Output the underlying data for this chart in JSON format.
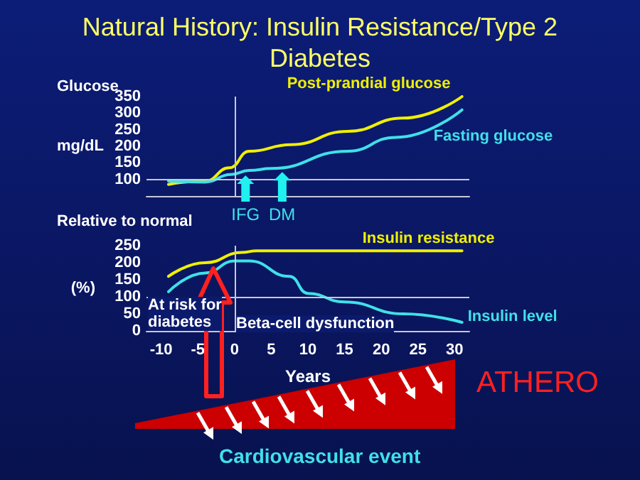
{
  "chart_data": [
    {
      "type": "line",
      "title": "Natural History: Insulin Resistance/Type 2 Diabetes",
      "ylabel": "mg/dL",
      "xlim": [
        -12,
        32
      ],
      "ylim": [
        50,
        350
      ],
      "yticks": [
        100,
        150,
        200,
        250,
        300,
        350
      ],
      "tick_labels": "y",
      "ref_lines": [
        {
          "axis": "y",
          "value": 100,
          "color": "#c8c8d8"
        },
        {
          "axis": "x",
          "value": 0,
          "color": "#c8c8d8"
        }
      ],
      "annotations": [
        "Glucose",
        {
          "text": "IFG",
          "x": 1.5,
          "y": 125
        },
        {
          "text": "DM",
          "x": 6.5,
          "y": 135
        }
      ],
      "series": [
        {
          "name": "Post-prandial glucose",
          "color": "#f0f000",
          "x": [
            -9,
            -4,
            -0.7,
            2,
            7.7,
            15.4,
            23,
            31
          ],
          "values": [
            85,
            95,
            135,
            185,
            205,
            245,
            285,
            350
          ]
        },
        {
          "name": "Fasting glucose",
          "color": "#40e0e8",
          "x": [
            -9,
            -4,
            -0.5,
            2,
            5,
            15.4,
            22,
            31
          ],
          "values": [
            95,
            92,
            115,
            127,
            133,
            185,
            227,
            310
          ]
        }
      ]
    },
    {
      "type": "line",
      "xlabel": "Years",
      "ylabel": "(%)",
      "xlim": [
        -12,
        32
      ],
      "xticks": [
        -10,
        -5,
        0,
        5,
        10,
        15,
        20,
        25,
        30
      ],
      "ylim": [
        0,
        250
      ],
      "yticks": [
        0,
        50,
        100,
        150,
        200,
        250
      ],
      "ref_lines": [
        {
          "axis": "y",
          "value": 100,
          "color": "#c8c8d8"
        },
        {
          "axis": "x",
          "value": 0,
          "color": "#c8c8d8"
        }
      ],
      "annotations": [
        "Relative to normal",
        "At risk for diabetes",
        "Beta-cell dysfunction",
        "ATHERO",
        "Cardiovascular event"
      ],
      "series": [
        {
          "name": "Insulin resistance",
          "color": "#f0f000",
          "x": [
            -9,
            -4,
            1,
            3,
            31
          ],
          "values": [
            160,
            200,
            230,
            235,
            235
          ]
        },
        {
          "name": "Insulin level",
          "color": "#40e0e8",
          "x": [
            -9,
            -4,
            0,
            2,
            7.5,
            10,
            15,
            23,
            31
          ],
          "values": [
            115,
            170,
            205,
            205,
            160,
            110,
            85,
            50,
            25
          ]
        }
      ]
    }
  ]
}
